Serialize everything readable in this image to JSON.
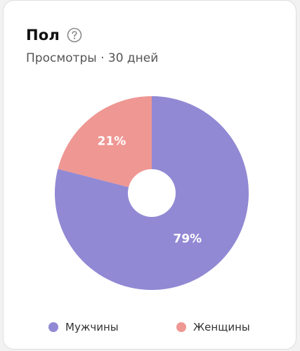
{
  "card": {
    "title": "Пол",
    "subtitle": "Просмотры · 30 дней",
    "help_icon": "question-circle-icon"
  },
  "colors": {
    "male": "#9189d4",
    "female": "#ef9793",
    "hole": "#ffffff"
  },
  "chart_data": {
    "type": "pie",
    "categories": [
      "Мужчины",
      "Женщины"
    ],
    "values": [
      79,
      21
    ],
    "labels": [
      "79%",
      "21%"
    ],
    "legend_position": "bottom"
  },
  "legend": {
    "items": [
      {
        "label": "Мужчины"
      },
      {
        "label": "Женщины"
      }
    ]
  }
}
